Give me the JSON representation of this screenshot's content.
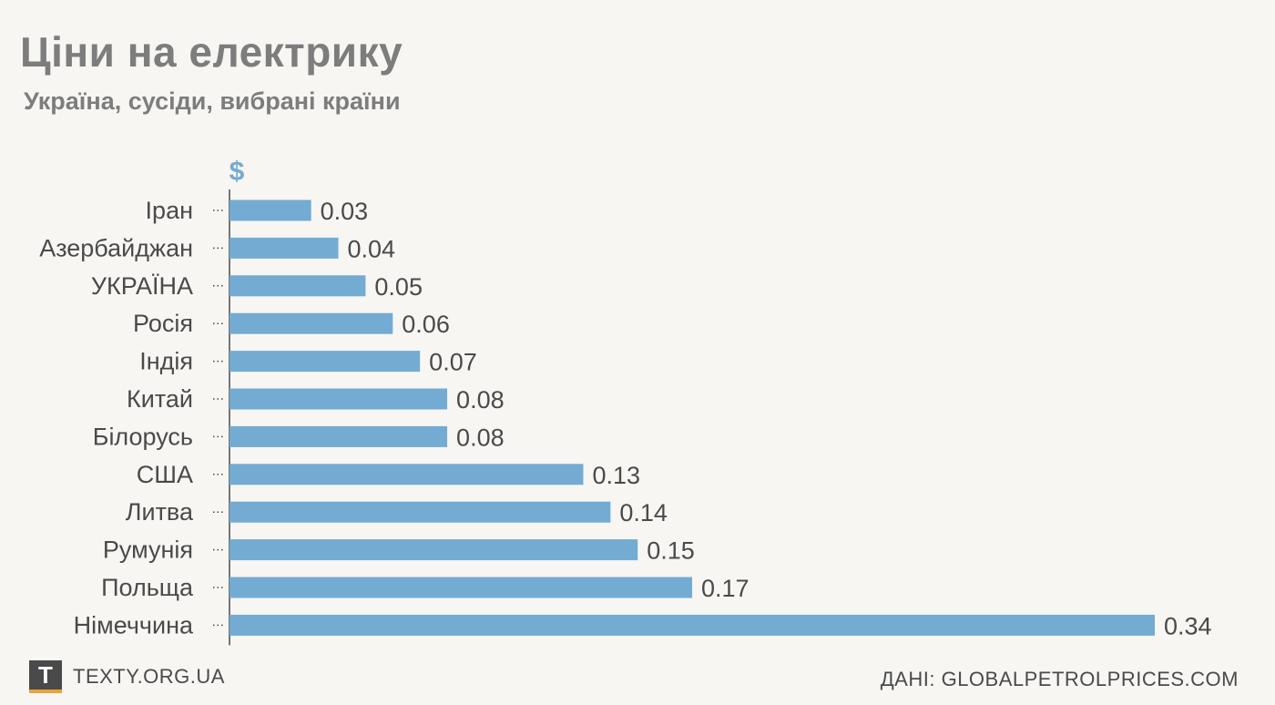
{
  "header": {
    "title": "Ціни на електрику",
    "subtitle": "Україна, сусіди, вибрані країни"
  },
  "chart_data": {
    "type": "bar",
    "orientation": "horizontal",
    "unit": "$",
    "categories": [
      "Іран",
      "Азербайджан",
      "УКРАЇНА",
      "Росія",
      "Індія",
      "Китай",
      "Білорусь",
      "США",
      "Литва",
      "Румунія",
      "Польща",
      "Німеччина"
    ],
    "values": [
      0.03,
      0.04,
      0.05,
      0.06,
      0.07,
      0.08,
      0.08,
      0.13,
      0.14,
      0.15,
      0.17,
      0.34
    ],
    "value_labels": [
      "0.03",
      "0.04",
      "0.05",
      "0.06",
      "0.07",
      "0.08",
      "0.08",
      "0.13",
      "0.14",
      "0.15",
      "0.17",
      "0.34"
    ],
    "xlim": [
      0,
      0.34
    ],
    "grid": false,
    "colors": {
      "bar": "#74abd2",
      "axis": "#4a4a4a",
      "unit": "#74abd2"
    }
  },
  "footer": {
    "logo_letter": "T",
    "site": "TEXTY.ORG.UA",
    "source": "ДАНІ: GLOBALPETROLPRICES.COM"
  },
  "colors": {
    "background": "#f7f6f3",
    "logo_bg": "#4a4a4a",
    "logo_accent": "#e8a33b"
  }
}
